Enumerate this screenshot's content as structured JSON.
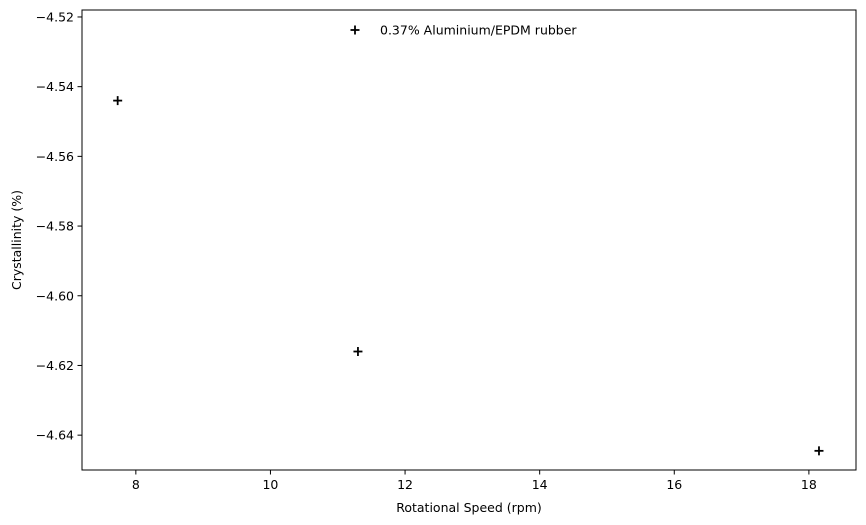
{
  "chart_data": {
    "type": "scatter",
    "title": "",
    "xlabel": "Rotational Speed (rpm)",
    "ylabel": "Crystallinity (%)",
    "xlim": [
      7.2,
      18.7
    ],
    "ylim": [
      -4.65,
      -4.518
    ],
    "x_ticks": [
      8,
      10,
      12,
      14,
      16,
      18
    ],
    "x_tick_labels": [
      "8",
      "10",
      "12",
      "14",
      "16",
      "18"
    ],
    "y_ticks": [
      -4.52,
      -4.54,
      -4.56,
      -4.58,
      -4.6,
      -4.62,
      -4.64
    ],
    "y_tick_labels": [
      "−4.52",
      "−4.54",
      "−4.56",
      "−4.58",
      "−4.60",
      "−4.62",
      "−4.64"
    ],
    "grid": false,
    "legend_position": "top-center",
    "series": [
      {
        "name": "0.37% Aluminium/EPDM rubber",
        "marker": "plus",
        "color": "#000000",
        "x": [
          7.73,
          11.3,
          18.15
        ],
        "y": [
          -4.544,
          -4.616,
          -4.6445
        ]
      }
    ]
  }
}
